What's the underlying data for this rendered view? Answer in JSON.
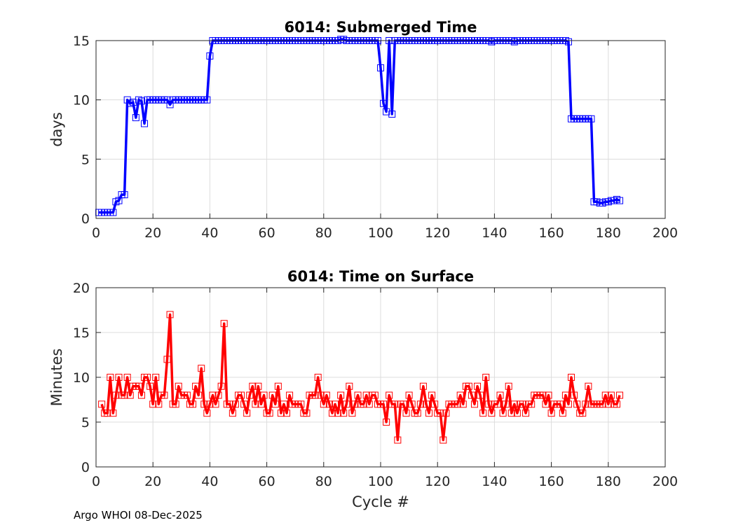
{
  "footer": "Argo WHOI 08-Dec-2025",
  "chart_data": [
    {
      "type": "line",
      "title": "6014: Submerged Time",
      "xlabel": "",
      "ylabel": "days",
      "xlim": [
        0,
        200
      ],
      "ylim": [
        0,
        15
      ],
      "xticks": [
        "0",
        "20",
        "40",
        "60",
        "80",
        "100",
        "120",
        "140",
        "160",
        "180",
        "200"
      ],
      "yticks": [
        "0",
        "5",
        "10",
        "15"
      ],
      "color": "#0000ff",
      "marker": "square",
      "series": [
        {
          "name": "Submerged Time",
          "x": [
            1,
            2,
            3,
            4,
            5,
            6,
            7,
            8,
            9,
            10,
            11,
            12,
            13,
            14,
            15,
            16,
            17,
            18,
            19,
            20,
            21,
            22,
            23,
            24,
            25,
            26,
            27,
            28,
            29,
            30,
            31,
            32,
            33,
            34,
            35,
            36,
            37,
            38,
            39,
            40,
            41,
            42,
            43,
            44,
            45,
            46,
            47,
            48,
            49,
            50,
            51,
            52,
            53,
            54,
            55,
            56,
            57,
            58,
            59,
            60,
            61,
            62,
            63,
            64,
            65,
            66,
            67,
            68,
            69,
            70,
            71,
            72,
            73,
            74,
            75,
            76,
            77,
            78,
            79,
            80,
            81,
            82,
            83,
            84,
            85,
            86,
            87,
            88,
            89,
            90,
            91,
            92,
            93,
            94,
            95,
            96,
            97,
            98,
            99,
            100,
            101,
            102,
            103,
            104,
            105,
            106,
            107,
            108,
            109,
            110,
            111,
            112,
            113,
            114,
            115,
            116,
            117,
            118,
            119,
            120,
            121,
            122,
            123,
            124,
            125,
            126,
            127,
            128,
            129,
            130,
            131,
            132,
            133,
            134,
            135,
            136,
            137,
            138,
            139,
            140,
            141,
            142,
            143,
            144,
            145,
            146,
            147,
            148,
            149,
            150,
            151,
            152,
            153,
            154,
            155,
            156,
            157,
            158,
            159,
            160,
            161,
            162,
            163,
            164,
            165,
            166,
            167,
            168,
            169,
            170,
            171,
            172,
            173,
            174,
            175,
            176,
            177,
            178,
            179,
            180,
            181,
            182,
            183,
            184
          ],
          "y": [
            0.5,
            0.5,
            0.5,
            0.5,
            0.5,
            0.5,
            1.4,
            1.5,
            2.0,
            2.0,
            10.0,
            9.7,
            9.8,
            8.5,
            10.0,
            9.9,
            8.0,
            10.0,
            10.0,
            10.0,
            10.0,
            10.0,
            10.0,
            10.0,
            10.0,
            9.6,
            10.0,
            10.0,
            10.0,
            10.0,
            10.0,
            10.0,
            10.0,
            10.0,
            10.0,
            10.0,
            10.0,
            10.0,
            10.0,
            13.7,
            15.0,
            15.0,
            15.0,
            15.0,
            15.0,
            15.0,
            15.0,
            15.0,
            15.0,
            15.0,
            15.0,
            15.0,
            15.0,
            15.0,
            15.0,
            15.0,
            15.0,
            15.0,
            15.0,
            15.0,
            15.0,
            15.0,
            15.0,
            15.0,
            15.0,
            15.0,
            15.0,
            15.0,
            15.0,
            15.0,
            15.0,
            15.0,
            15.0,
            15.0,
            15.0,
            15.0,
            15.0,
            15.0,
            15.0,
            15.0,
            15.0,
            15.0,
            15.0,
            15.0,
            15.0,
            15.1,
            15.1,
            15.0,
            15.0,
            15.0,
            15.0,
            15.0,
            15.0,
            15.0,
            15.0,
            15.0,
            15.0,
            15.0,
            15.0,
            12.7,
            9.7,
            9.0,
            15.0,
            8.8,
            15.0,
            15.0,
            15.0,
            15.0,
            15.0,
            15.0,
            15.0,
            15.0,
            15.0,
            15.0,
            15.0,
            15.0,
            15.0,
            15.0,
            15.0,
            15.0,
            15.0,
            15.0,
            15.0,
            15.0,
            15.0,
            15.0,
            15.0,
            15.0,
            15.0,
            15.0,
            15.0,
            15.0,
            15.0,
            15.0,
            15.0,
            15.0,
            15.0,
            15.0,
            14.9,
            15.0,
            15.0,
            15.0,
            15.0,
            15.0,
            15.0,
            15.0,
            14.9,
            15.0,
            15.0,
            15.0,
            15.0,
            15.0,
            15.0,
            15.0,
            15.0,
            15.0,
            15.0,
            15.0,
            15.0,
            15.0,
            15.0,
            15.0,
            15.0,
            15.0,
            15.0,
            14.9,
            8.4,
            8.4,
            8.4,
            8.4,
            8.4,
            8.4,
            8.4,
            8.4,
            1.4,
            1.4,
            1.3,
            1.3,
            1.4,
            1.4,
            1.5,
            1.5,
            1.6,
            1.5
          ]
        }
      ]
    },
    {
      "type": "line",
      "title": "6014: Time on Surface",
      "xlabel": "Cycle #",
      "ylabel": "Minutes",
      "xlim": [
        0,
        200
      ],
      "ylim": [
        0,
        20
      ],
      "xticks": [
        "0",
        "20",
        "40",
        "60",
        "80",
        "100",
        "120",
        "140",
        "160",
        "180",
        "200"
      ],
      "yticks": [
        "0",
        "5",
        "10",
        "15",
        "20"
      ],
      "color": "#ff0000",
      "marker": "square",
      "series": [
        {
          "name": "Time on Surface",
          "x": [
            2,
            3,
            4,
            5,
            6,
            7,
            8,
            9,
            10,
            11,
            12,
            13,
            14,
            15,
            16,
            17,
            18,
            19,
            20,
            21,
            22,
            23,
            24,
            25,
            26,
            27,
            28,
            29,
            30,
            31,
            32,
            33,
            34,
            35,
            36,
            37,
            38,
            39,
            40,
            41,
            42,
            43,
            44,
            45,
            46,
            47,
            48,
            49,
            50,
            51,
            52,
            53,
            54,
            55,
            56,
            57,
            58,
            59,
            60,
            61,
            62,
            63,
            64,
            65,
            66,
            67,
            68,
            69,
            70,
            71,
            72,
            73,
            74,
            75,
            76,
            77,
            78,
            79,
            80,
            81,
            82,
            83,
            84,
            85,
            86,
            87,
            88,
            89,
            90,
            91,
            92,
            93,
            94,
            95,
            96,
            97,
            98,
            99,
            100,
            101,
            102,
            103,
            104,
            105,
            106,
            107,
            108,
            109,
            110,
            111,
            112,
            113,
            114,
            115,
            116,
            117,
            118,
            119,
            120,
            121,
            122,
            123,
            124,
            125,
            126,
            127,
            128,
            129,
            130,
            131,
            132,
            133,
            134,
            135,
            136,
            137,
            138,
            139,
            140,
            141,
            142,
            143,
            144,
            145,
            146,
            147,
            148,
            149,
            150,
            151,
            152,
            153,
            154,
            155,
            156,
            157,
            158,
            159,
            160,
            161,
            162,
            163,
            164,
            165,
            166,
            167,
            168,
            169,
            170,
            171,
            172,
            173,
            174,
            175,
            176,
            177,
            178,
            179,
            180,
            181,
            182,
            183,
            184
          ],
          "y": [
            7,
            6,
            6,
            10,
            6,
            8,
            10,
            8,
            8,
            10,
            8,
            9,
            9,
            9,
            8,
            10,
            10,
            9,
            7,
            10,
            7,
            8,
            8,
            12,
            17,
            7,
            7,
            9,
            8,
            8,
            8,
            7,
            7,
            9,
            8,
            11,
            7,
            6,
            7,
            8,
            7,
            8,
            9,
            16,
            7,
            7,
            6,
            7,
            8,
            8,
            7,
            6,
            8,
            9,
            7,
            9,
            7,
            8,
            6,
            6,
            8,
            7,
            9,
            6,
            7,
            6,
            8,
            7,
            7,
            7,
            7,
            6,
            6,
            8,
            8,
            8,
            10,
            8,
            7,
            8,
            7,
            6,
            7,
            6,
            8,
            6,
            7,
            9,
            6,
            7,
            8,
            7,
            7,
            8,
            7,
            8,
            8,
            7,
            7,
            7,
            5,
            8,
            7,
            7,
            3,
            7,
            7,
            6,
            8,
            7,
            6,
            6,
            7,
            9,
            7,
            6,
            8,
            7,
            6,
            6,
            3,
            6,
            7,
            7,
            7,
            7,
            8,
            7,
            9,
            9,
            8,
            7,
            9,
            8,
            6,
            10,
            7,
            6,
            7,
            7,
            8,
            6,
            7,
            9,
            6,
            7,
            6,
            7,
            7,
            6,
            7,
            7,
            8,
            8,
            8,
            8,
            7,
            8,
            6,
            7,
            7,
            7,
            6,
            8,
            7,
            10,
            8,
            7,
            6,
            6,
            7,
            9,
            7,
            7,
            7,
            7,
            7,
            8,
            7,
            8,
            7,
            7,
            8
          ]
        }
      ]
    }
  ]
}
